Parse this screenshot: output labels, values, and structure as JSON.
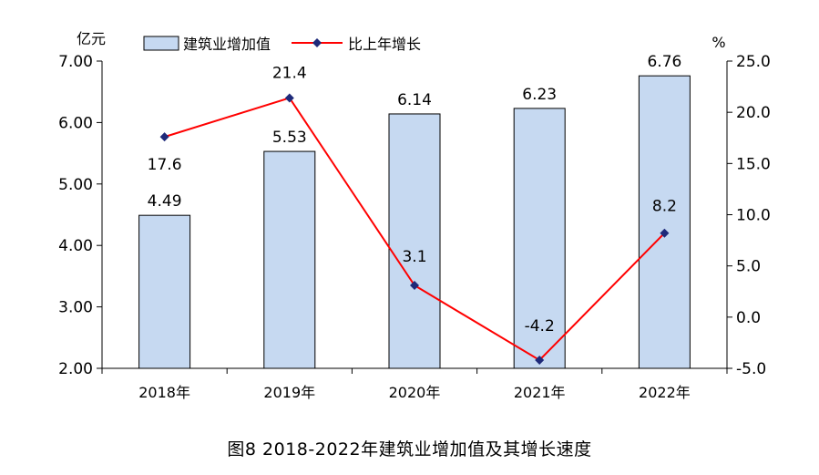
{
  "chart_data": {
    "type": "bar",
    "title": "图8 2018-2022年建筑业增加值及其增长速度",
    "categories": [
      "2018年",
      "2019年",
      "2020年",
      "2021年",
      "2022年"
    ],
    "series": [
      {
        "name": "建筑业增加值",
        "type": "bar",
        "axis": "left",
        "values": [
          4.49,
          5.53,
          6.14,
          6.23,
          6.76
        ],
        "labels": [
          "4.49",
          "5.53",
          "6.14",
          "6.23",
          "6.76"
        ]
      },
      {
        "name": "比上年增长",
        "type": "line",
        "axis": "right",
        "values": [
          17.6,
          21.4,
          3.1,
          -4.2,
          8.2
        ],
        "labels": [
          "17.6",
          "21.4",
          "3.1",
          "-4.2",
          "8.2"
        ]
      }
    ],
    "y_left": {
      "unit": "亿元",
      "ylim": [
        2.0,
        7.0
      ],
      "ticks": [
        7.0,
        6.0,
        5.0,
        4.0,
        3.0,
        2.0
      ],
      "tick_labels": [
        "7.00",
        "6.00",
        "5.00",
        "4.00",
        "3.00",
        "2.00"
      ]
    },
    "y_right": {
      "unit": "%",
      "ylim": [
        -5.0,
        25.0
      ],
      "ticks": [
        25.0,
        20.0,
        15.0,
        10.0,
        5.0,
        0.0,
        -5.0
      ],
      "tick_labels": [
        "25.0",
        "20.0",
        "15.0",
        "10.0",
        "5.0",
        "0.0",
        "-5.0"
      ]
    },
    "legend_position": "top",
    "grid": false,
    "colors": {
      "bar_fill": "#c6d9f1",
      "bar_stroke": "#000000",
      "line": "#ff0000",
      "marker": "#1f2a7a"
    }
  }
}
